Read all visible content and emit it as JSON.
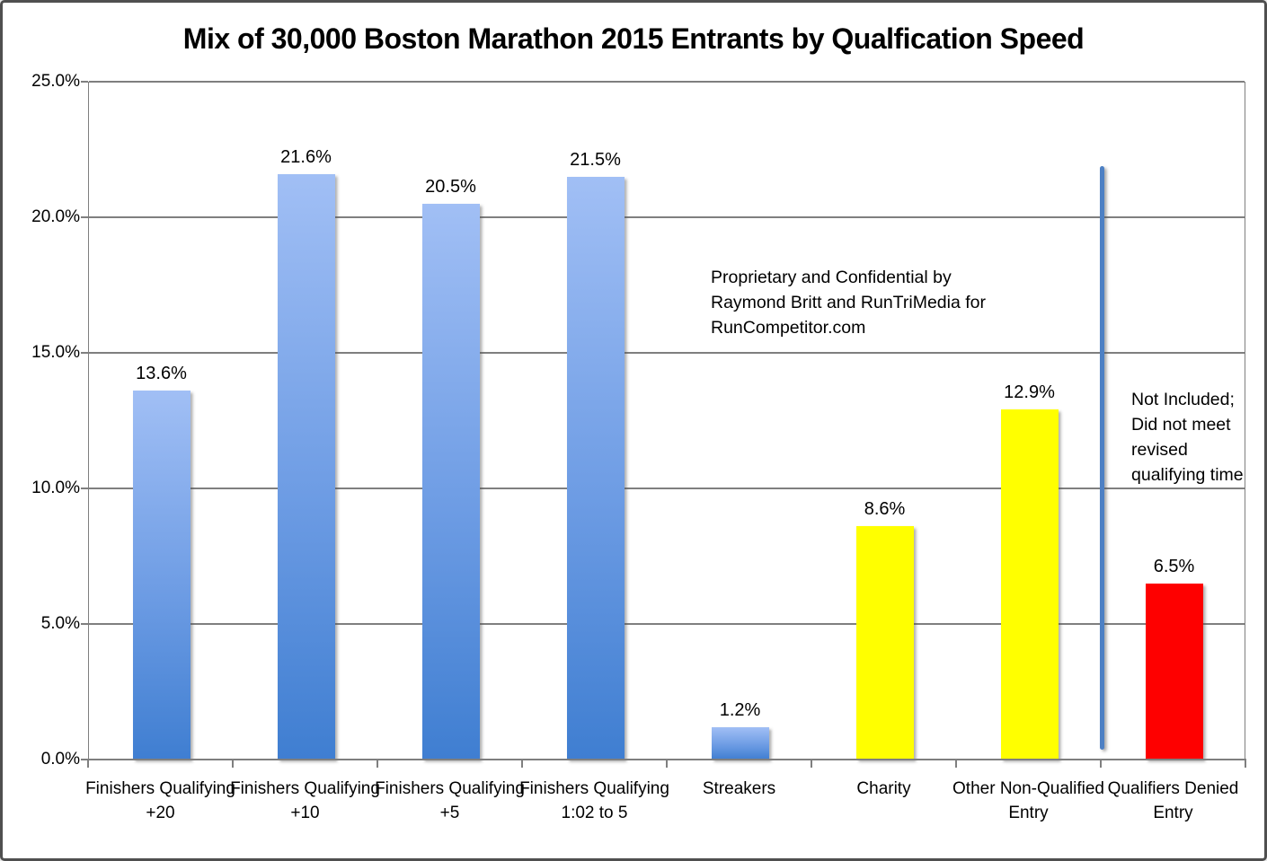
{
  "title": "Mix of 30,000 Boston Marathon 2015 Entrants by Qualfication Speed",
  "chart_data": {
    "type": "bar",
    "title": "Mix of 30,000 Boston Marathon 2015 Entrants by Qualfication Speed",
    "xlabel": "",
    "ylabel": "",
    "ylim": [
      0,
      25
    ],
    "grid": true,
    "legend": "none",
    "yticks": [
      {
        "value": 25,
        "label": "25.0%"
      },
      {
        "value": 20,
        "label": "20.0%"
      },
      {
        "value": 15,
        "label": "15.0%"
      },
      {
        "value": 10,
        "label": "10.0%"
      },
      {
        "value": 5,
        "label": "5.0%"
      },
      {
        "value": 0,
        "label": "0.0%"
      }
    ],
    "categories": [
      "Finishers Qualifying +20",
      "Finishers Qualifying +10",
      "Finishers Qualifying +5",
      "Finishers Qualifying 1:02 to 5",
      "Streakers",
      "Charity",
      "Other Non-Qualified Entry",
      "Qualifiers Denied Entry"
    ],
    "bars": [
      {
        "category": "Finishers Qualifying +20",
        "value": 13.6,
        "label": "13.6%",
        "color": "blue"
      },
      {
        "category": "Finishers Qualifying +10",
        "value": 21.6,
        "label": "21.6%",
        "color": "blue"
      },
      {
        "category": "Finishers Qualifying +5",
        "value": 20.5,
        "label": "20.5%",
        "color": "blue"
      },
      {
        "category": "Finishers Qualifying 1:02 to 5",
        "value": 21.5,
        "label": "21.5%",
        "color": "blue"
      },
      {
        "category": "Streakers",
        "value": 1.2,
        "label": "1.2%",
        "color": "blue"
      },
      {
        "category": "Charity",
        "value": 8.6,
        "label": "8.6%",
        "color": "yellow"
      },
      {
        "category": "Other Non-Qualified Entry",
        "value": 12.9,
        "label": "12.9%",
        "color": "yellow"
      },
      {
        "category": "Qualifiers Denied Entry",
        "value": 6.5,
        "label": "6.5%",
        "color": "red"
      }
    ],
    "annotations": {
      "proprietary": "Proprietary and Confidential by Raymond Britt and RunTriMedia for RunCompetitor.com",
      "not_included": "Not Included; Did not meet revised qualifying time",
      "divider_line": {
        "between_categories": [
          7,
          8
        ],
        "top_value": 21.9,
        "bottom_value": 0.35
      }
    },
    "colors": {
      "blue_bar_top": "#a1bff5",
      "blue_bar_bottom": "#3f7ed1",
      "yellow_bar": "#ffff00",
      "red_bar": "#fe0000",
      "divider_line": "#4d80c4",
      "gridline": "#7f7f7f"
    }
  }
}
